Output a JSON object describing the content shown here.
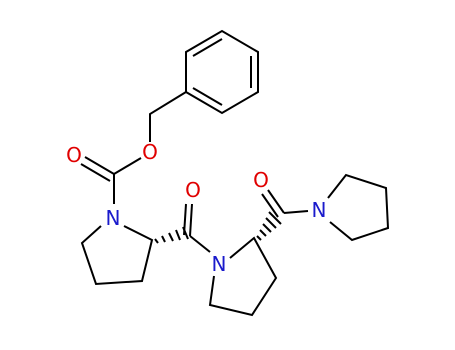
{
  "atoms": [
    {
      "label": "O"
    },
    {
      "label": "O"
    },
    {
      "label": "N"
    },
    {
      "label": "O"
    },
    {
      "label": "N"
    },
    {
      "label": "O"
    },
    {
      "label": "N"
    }
  ]
}
